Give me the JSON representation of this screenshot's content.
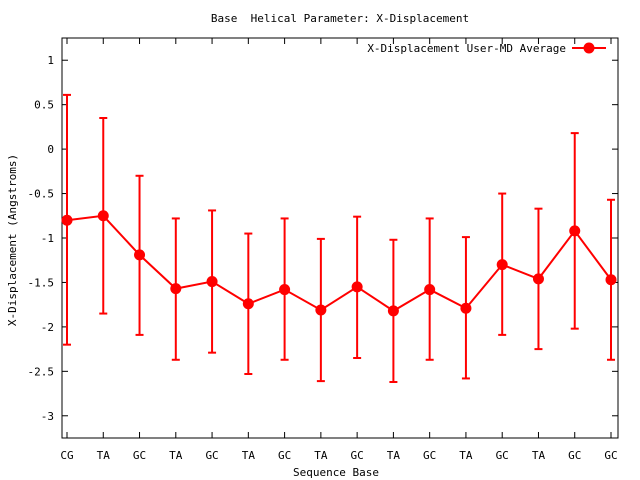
{
  "chart_data": {
    "type": "line",
    "title": "Base  Helical Parameter: X-Displacement",
    "xlabel": "Sequence Base",
    "ylabel": "X-Displacement (Angstroms)",
    "ylim": [
      -3.25,
      1.25
    ],
    "yticks": [
      1,
      0.5,
      0,
      -0.5,
      -1,
      -1.5,
      -2,
      -2.5,
      -3
    ],
    "ytick_labels": [
      "1",
      "0.5",
      "0",
      "-0.5",
      "-1",
      "-1.5",
      "-2",
      "-2.5",
      "-3"
    ],
    "categories": [
      "CG",
      "TA",
      "GC",
      "TA",
      "GC",
      "TA",
      "GC",
      "TA",
      "GC",
      "TA",
      "GC",
      "TA",
      "GC",
      "TA",
      "GC",
      "GC"
    ],
    "legend_position": "top-right",
    "grid": false,
    "series": [
      {
        "name": "X-Displacement User-MD Average",
        "color": "#ff0000",
        "values": [
          -0.8,
          -0.75,
          -1.19,
          -1.57,
          -1.49,
          -1.74,
          -1.58,
          -1.81,
          -1.55,
          -1.82,
          -1.58,
          -1.79,
          -1.3,
          -1.46,
          -0.92,
          -1.47
        ],
        "err_low": [
          -2.2,
          -1.85,
          -2.09,
          -2.37,
          -2.29,
          -2.53,
          -2.37,
          -2.61,
          -2.35,
          -2.62,
          -2.37,
          -2.58,
          -2.09,
          -2.25,
          -2.02,
          -2.37
        ],
        "err_high": [
          0.61,
          0.35,
          -0.3,
          -0.78,
          -0.69,
          -0.95,
          -0.78,
          -1.01,
          -0.76,
          -1.02,
          -0.78,
          -0.99,
          -0.5,
          -0.67,
          0.18,
          -0.57
        ]
      }
    ]
  }
}
